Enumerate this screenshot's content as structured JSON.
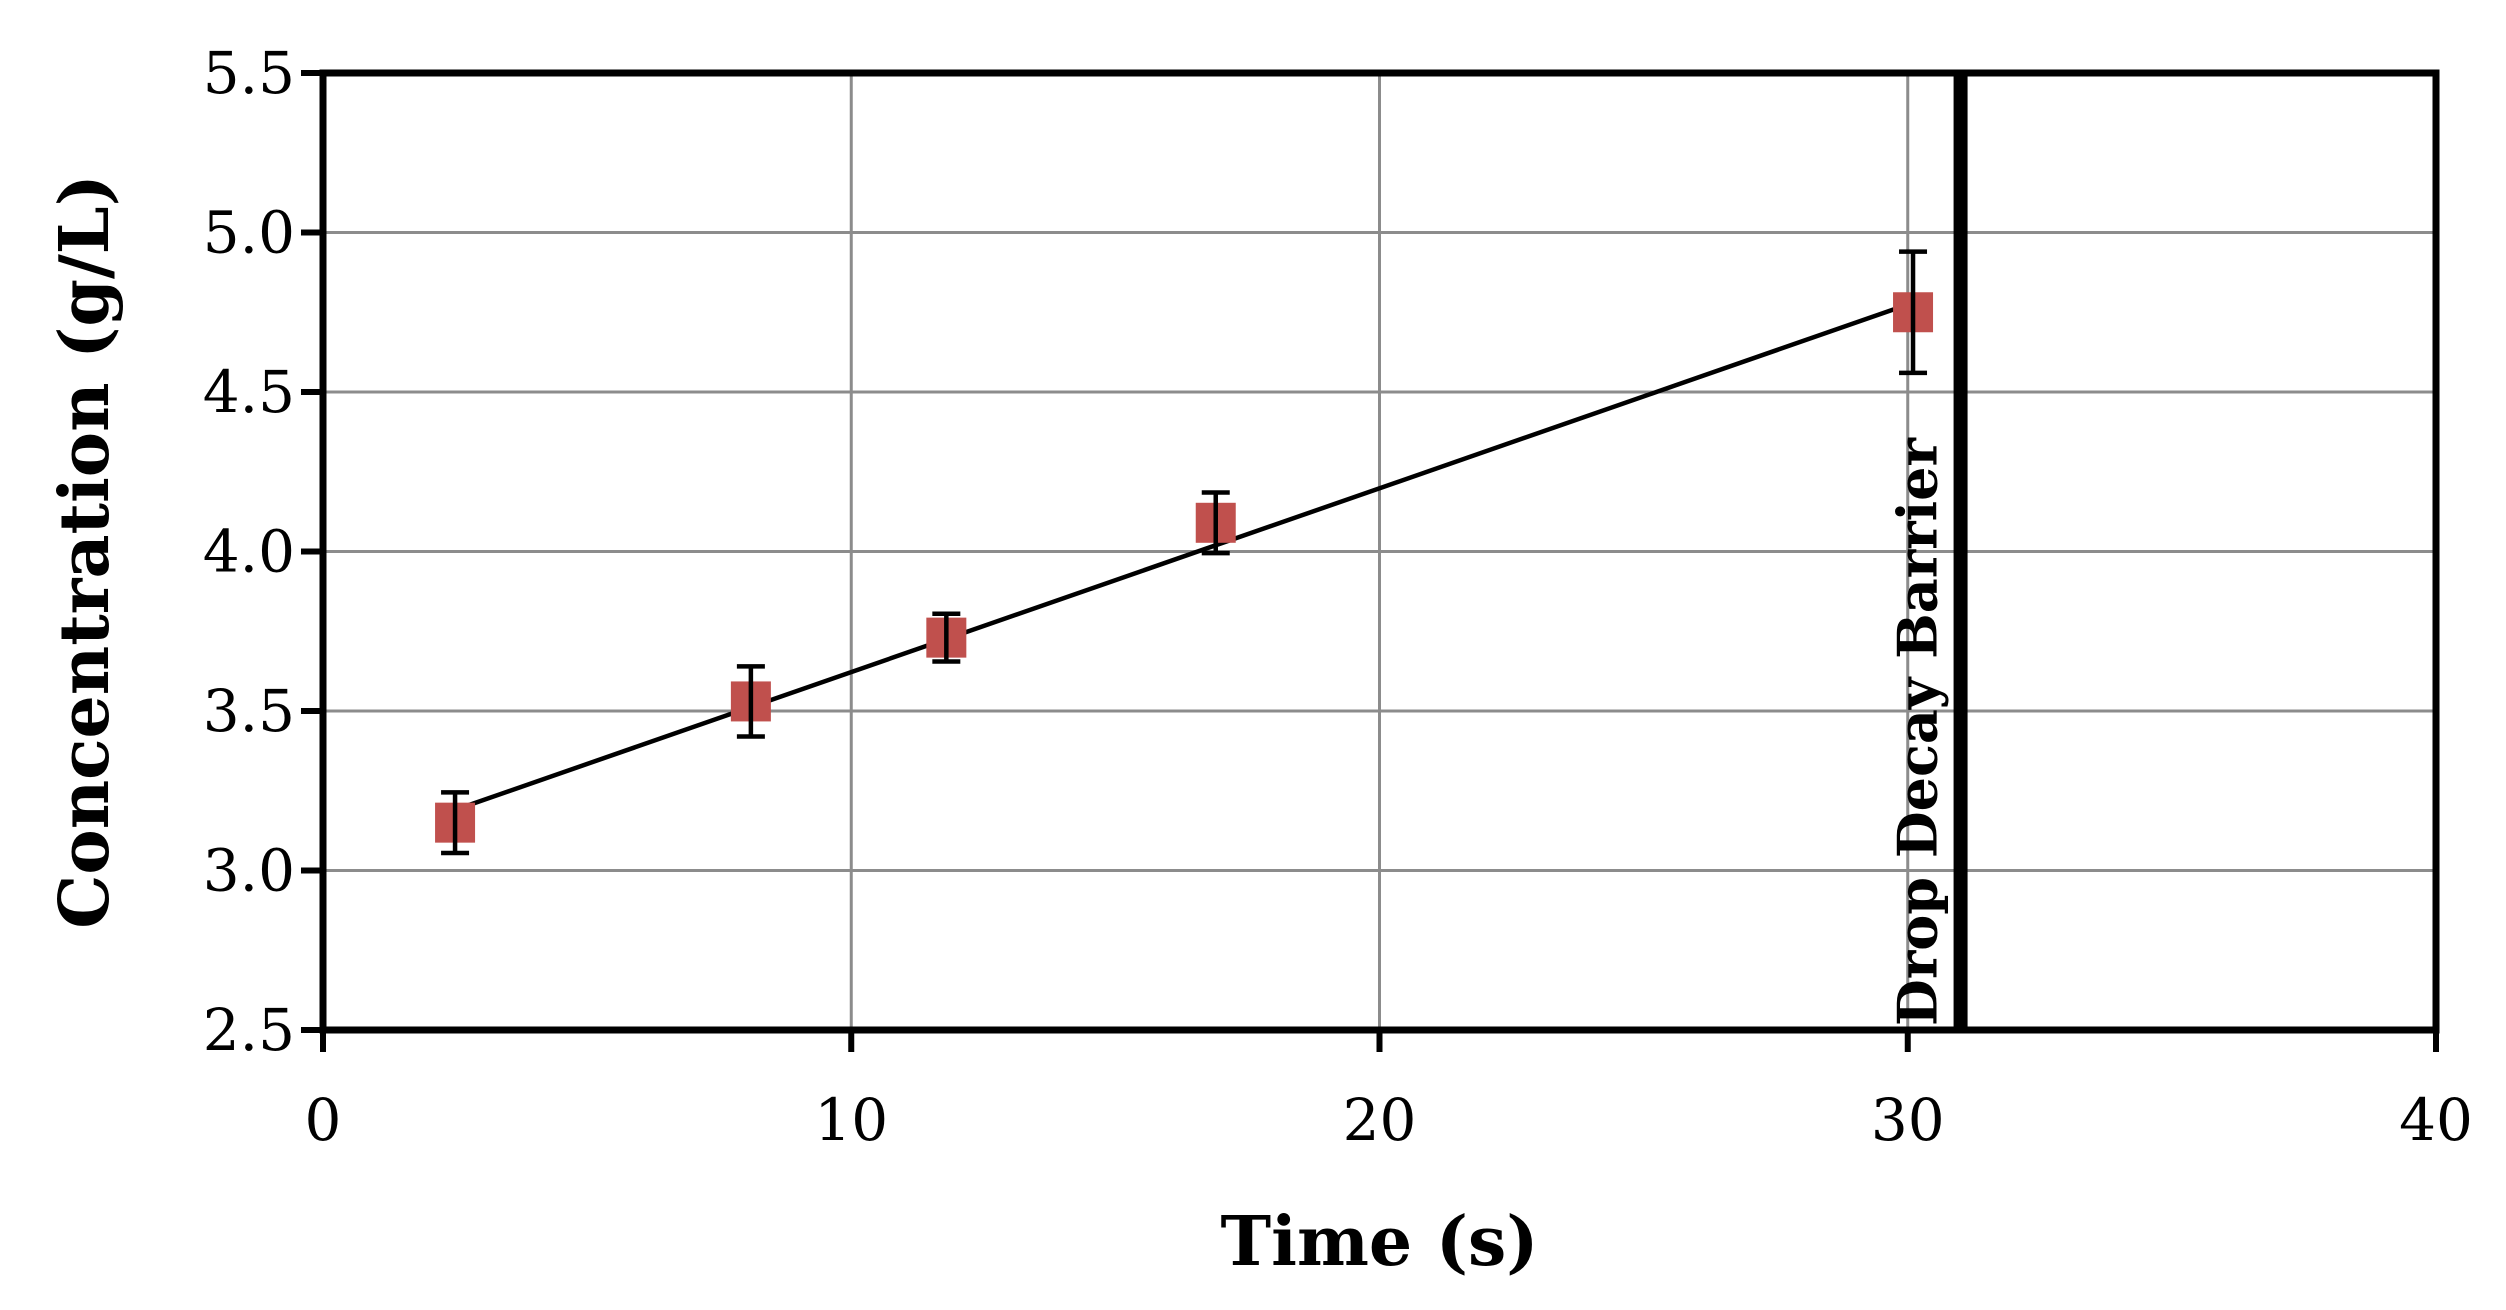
{
  "chart_data": {
    "type": "scatter",
    "title": "",
    "xlabel": "Time (s)",
    "ylabel": "Concentration (g/L)",
    "xlim": [
      0,
      40
    ],
    "ylim": [
      2.5,
      5.5
    ],
    "x_ticks": [
      "0",
      "10",
      "20",
      "30",
      "40"
    ],
    "y_ticks": [
      "2.5",
      "3.0",
      "3.5",
      "4.0",
      "4.5",
      "5.0",
      "5.5"
    ],
    "grid": true,
    "legend": "none",
    "series": [
      {
        "marker": "square",
        "color": "#c0504d",
        "points": [
          {
            "x": 2.5,
            "y": 3.15,
            "err": 0.095
          },
          {
            "x": 8.1,
            "y": 3.53,
            "err": 0.11
          },
          {
            "x": 11.8,
            "y": 3.73,
            "err": 0.075
          },
          {
            "x": 16.9,
            "y": 4.09,
            "err": 0.095
          },
          {
            "x": 30.1,
            "y": 4.75,
            "err": 0.19
          }
        ]
      }
    ],
    "trendline": {
      "type": "linear",
      "color": "#000000",
      "from": {
        "x": 2.5,
        "y": 3.19
      },
      "to": {
        "x": 30.1,
        "y": 4.78
      }
    },
    "annotations": [
      {
        "text": "Drop Decay Barrier",
        "x": 31.0,
        "orientation": "vertical",
        "color": "#000000"
      }
    ]
  }
}
